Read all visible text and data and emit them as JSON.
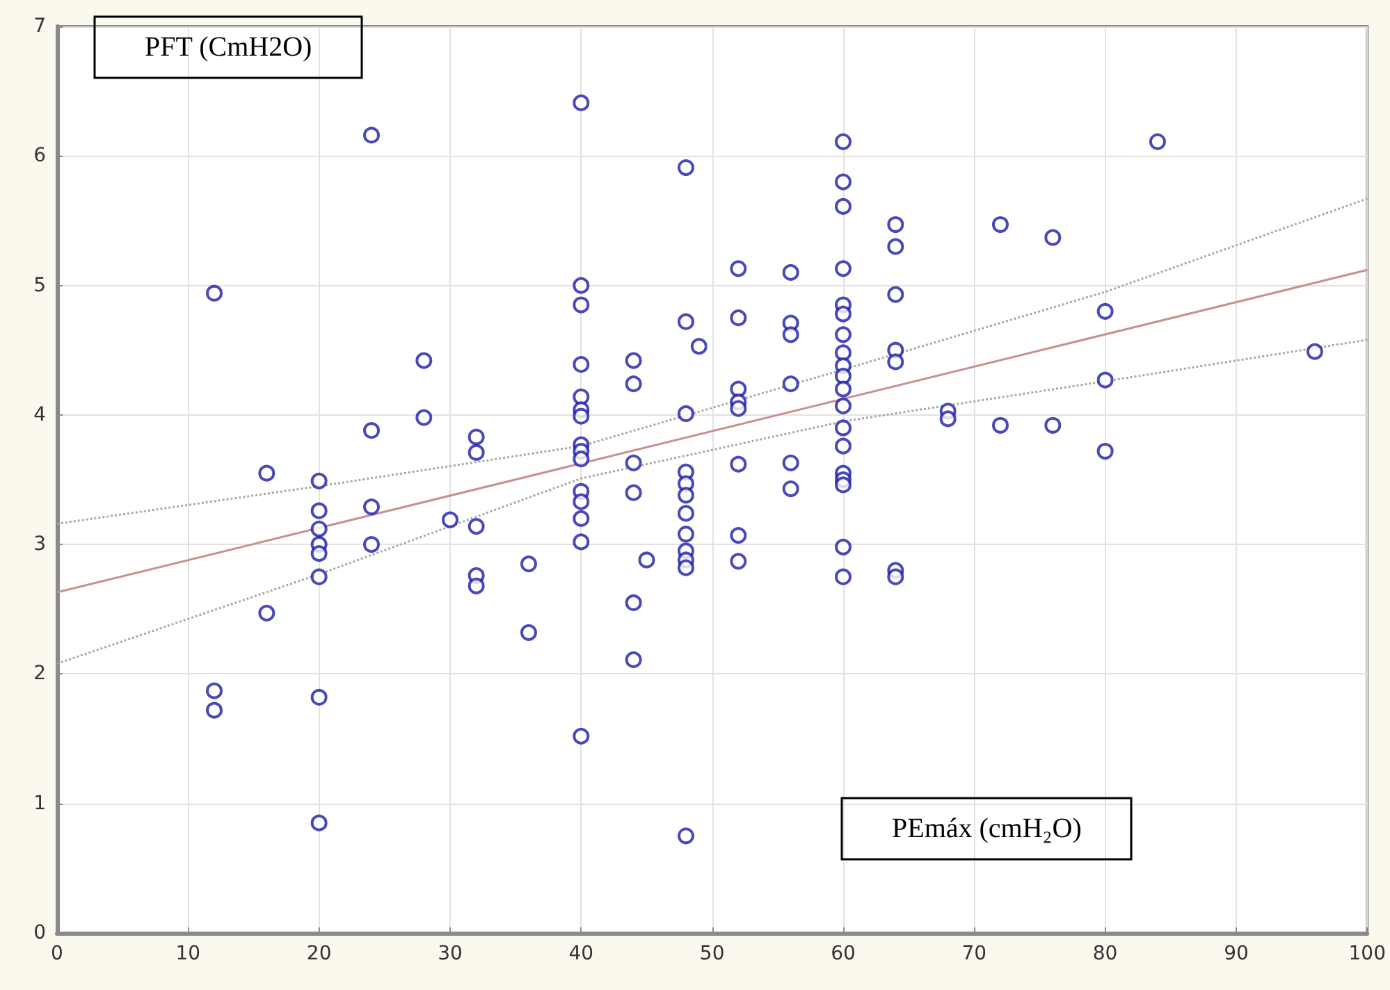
{
  "chart_data": {
    "type": "scatter",
    "ylabel": "PFT (CmH2O)",
    "xlabel": "PEmáx (cmH₂O)",
    "xlim": [
      0,
      100
    ],
    "xticks": [
      0,
      10,
      20,
      30,
      40,
      50,
      60,
      70,
      80,
      90,
      100
    ],
    "ylim": [
      0,
      7
    ],
    "yticks": [
      0,
      1,
      2,
      3,
      4,
      5,
      6,
      7
    ],
    "grid": true,
    "marker": "circle",
    "series": [
      {
        "color": "#1c1ca8",
        "x": [
          12,
          12,
          12,
          16,
          16,
          20,
          20,
          20,
          20,
          20,
          20,
          20,
          20,
          24,
          24,
          24,
          24,
          28,
          28,
          30,
          32,
          32,
          32,
          32,
          32,
          36,
          36,
          40,
          40,
          40,
          40,
          40,
          40,
          40,
          40,
          40,
          40,
          40,
          40,
          40,
          40,
          40,
          44,
          44,
          44,
          44,
          44,
          44,
          45,
          48,
          48,
          48,
          48,
          48,
          48,
          48,
          48,
          48,
          48,
          48,
          48,
          49,
          52,
          52,
          52,
          52,
          52,
          52,
          52,
          52,
          56,
          56,
          56,
          56,
          56,
          56,
          60,
          60,
          60,
          60,
          60,
          60,
          60,
          60,
          60,
          60,
          60,
          60,
          60,
          60,
          60,
          60,
          60,
          60,
          60,
          64,
          64,
          64,
          64,
          64,
          64,
          64,
          68,
          68,
          72,
          72,
          76,
          76,
          80,
          80,
          80,
          84,
          96
        ],
        "values": [
          4.94,
          1.87,
          1.72,
          3.55,
          2.47,
          3.49,
          3.26,
          3.12,
          3.0,
          2.93,
          2.75,
          1.82,
          0.85,
          6.16,
          3.88,
          3.29,
          3.0,
          4.42,
          3.98,
          3.19,
          3.83,
          3.71,
          3.14,
          2.76,
          2.68,
          2.85,
          2.32,
          6.41,
          5.0,
          4.85,
          4.39,
          4.14,
          4.04,
          3.99,
          3.77,
          3.72,
          3.66,
          3.41,
          3.33,
          3.2,
          3.02,
          1.52,
          4.42,
          4.24,
          3.63,
          3.4,
          2.55,
          2.11,
          2.88,
          5.91,
          4.72,
          4.01,
          3.56,
          3.47,
          3.38,
          3.24,
          3.08,
          2.95,
          2.88,
          2.82,
          0.75,
          4.53,
          5.13,
          4.75,
          4.2,
          4.1,
          4.05,
          3.62,
          3.07,
          2.87,
          5.1,
          4.71,
          4.62,
          4.24,
          3.63,
          3.43,
          6.11,
          5.8,
          5.61,
          5.13,
          4.85,
          4.78,
          4.62,
          4.48,
          4.38,
          4.3,
          4.2,
          4.07,
          3.9,
          3.76,
          3.55,
          3.5,
          3.46,
          2.98,
          2.75,
          5.47,
          5.3,
          4.93,
          4.5,
          4.41,
          2.8,
          2.75,
          4.03,
          3.97,
          5.47,
          3.92,
          5.37,
          3.92,
          4.8,
          4.27,
          3.72,
          6.11,
          4.49
        ]
      },
      {
        "type": "line",
        "color": "#c89090",
        "line_style": "solid",
        "marker": "none",
        "x": [
          0,
          100
        ],
        "values": [
          2.63,
          5.12
        ]
      },
      {
        "type": "line",
        "color": "#a8a8a8",
        "line_style": "dotted",
        "marker": "none",
        "x": [
          0,
          20,
          40,
          60,
          80,
          100
        ],
        "values": [
          3.16,
          3.45,
          3.76,
          4.35,
          4.95,
          5.67
        ]
      },
      {
        "type": "line",
        "color": "#a8a8a8",
        "line_style": "dotted",
        "marker": "none",
        "x": [
          0,
          20,
          40,
          60,
          80,
          100
        ],
        "values": [
          2.08,
          2.77,
          3.51,
          3.95,
          4.26,
          4.58
        ]
      }
    ]
  }
}
